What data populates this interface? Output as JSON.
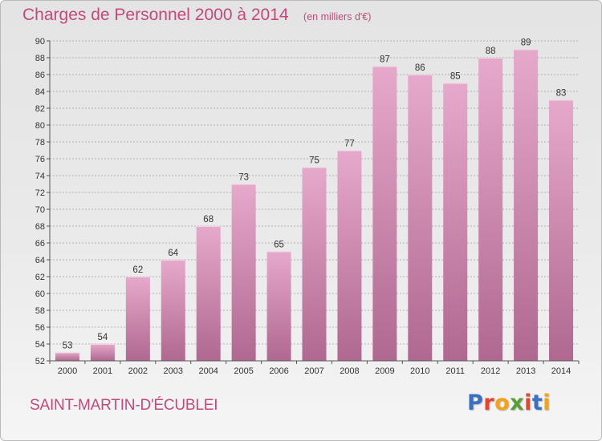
{
  "title": "Charges de Personnel 2000 à 2014",
  "subtitle": "(en milliers d'€)",
  "commune": "SAINT-MARTIN-D'ÉCUBLEI",
  "logo": {
    "text": "Proxiti",
    "letter_colors": [
      "#3a6fc4",
      "#e8452e",
      "#f2a31d",
      "#5a9e3a",
      "#e8452e",
      "#3a6fc4",
      "#f2a31d"
    ]
  },
  "colors": {
    "title": "#c2497b",
    "bar_top": "#e6a9cb",
    "bar_bottom": "#b06890",
    "grid": "#a0a0a0",
    "axis": "#555555"
  },
  "chart_data": {
    "type": "bar",
    "categories": [
      "2000",
      "2001",
      "2002",
      "2003",
      "2004",
      "2005",
      "2006",
      "2007",
      "2008",
      "2009",
      "2010",
      "2011",
      "2012",
      "2013",
      "2014"
    ],
    "values": [
      53,
      54,
      62,
      64,
      68,
      73,
      65,
      75,
      77,
      87,
      86,
      85,
      88,
      89,
      83
    ],
    "ylim": [
      52,
      90
    ],
    "yticks": [
      52,
      54,
      56,
      58,
      60,
      62,
      64,
      66,
      68,
      70,
      72,
      74,
      76,
      78,
      80,
      82,
      84,
      86,
      88,
      90
    ],
    "grid": true,
    "data_labels": true
  }
}
